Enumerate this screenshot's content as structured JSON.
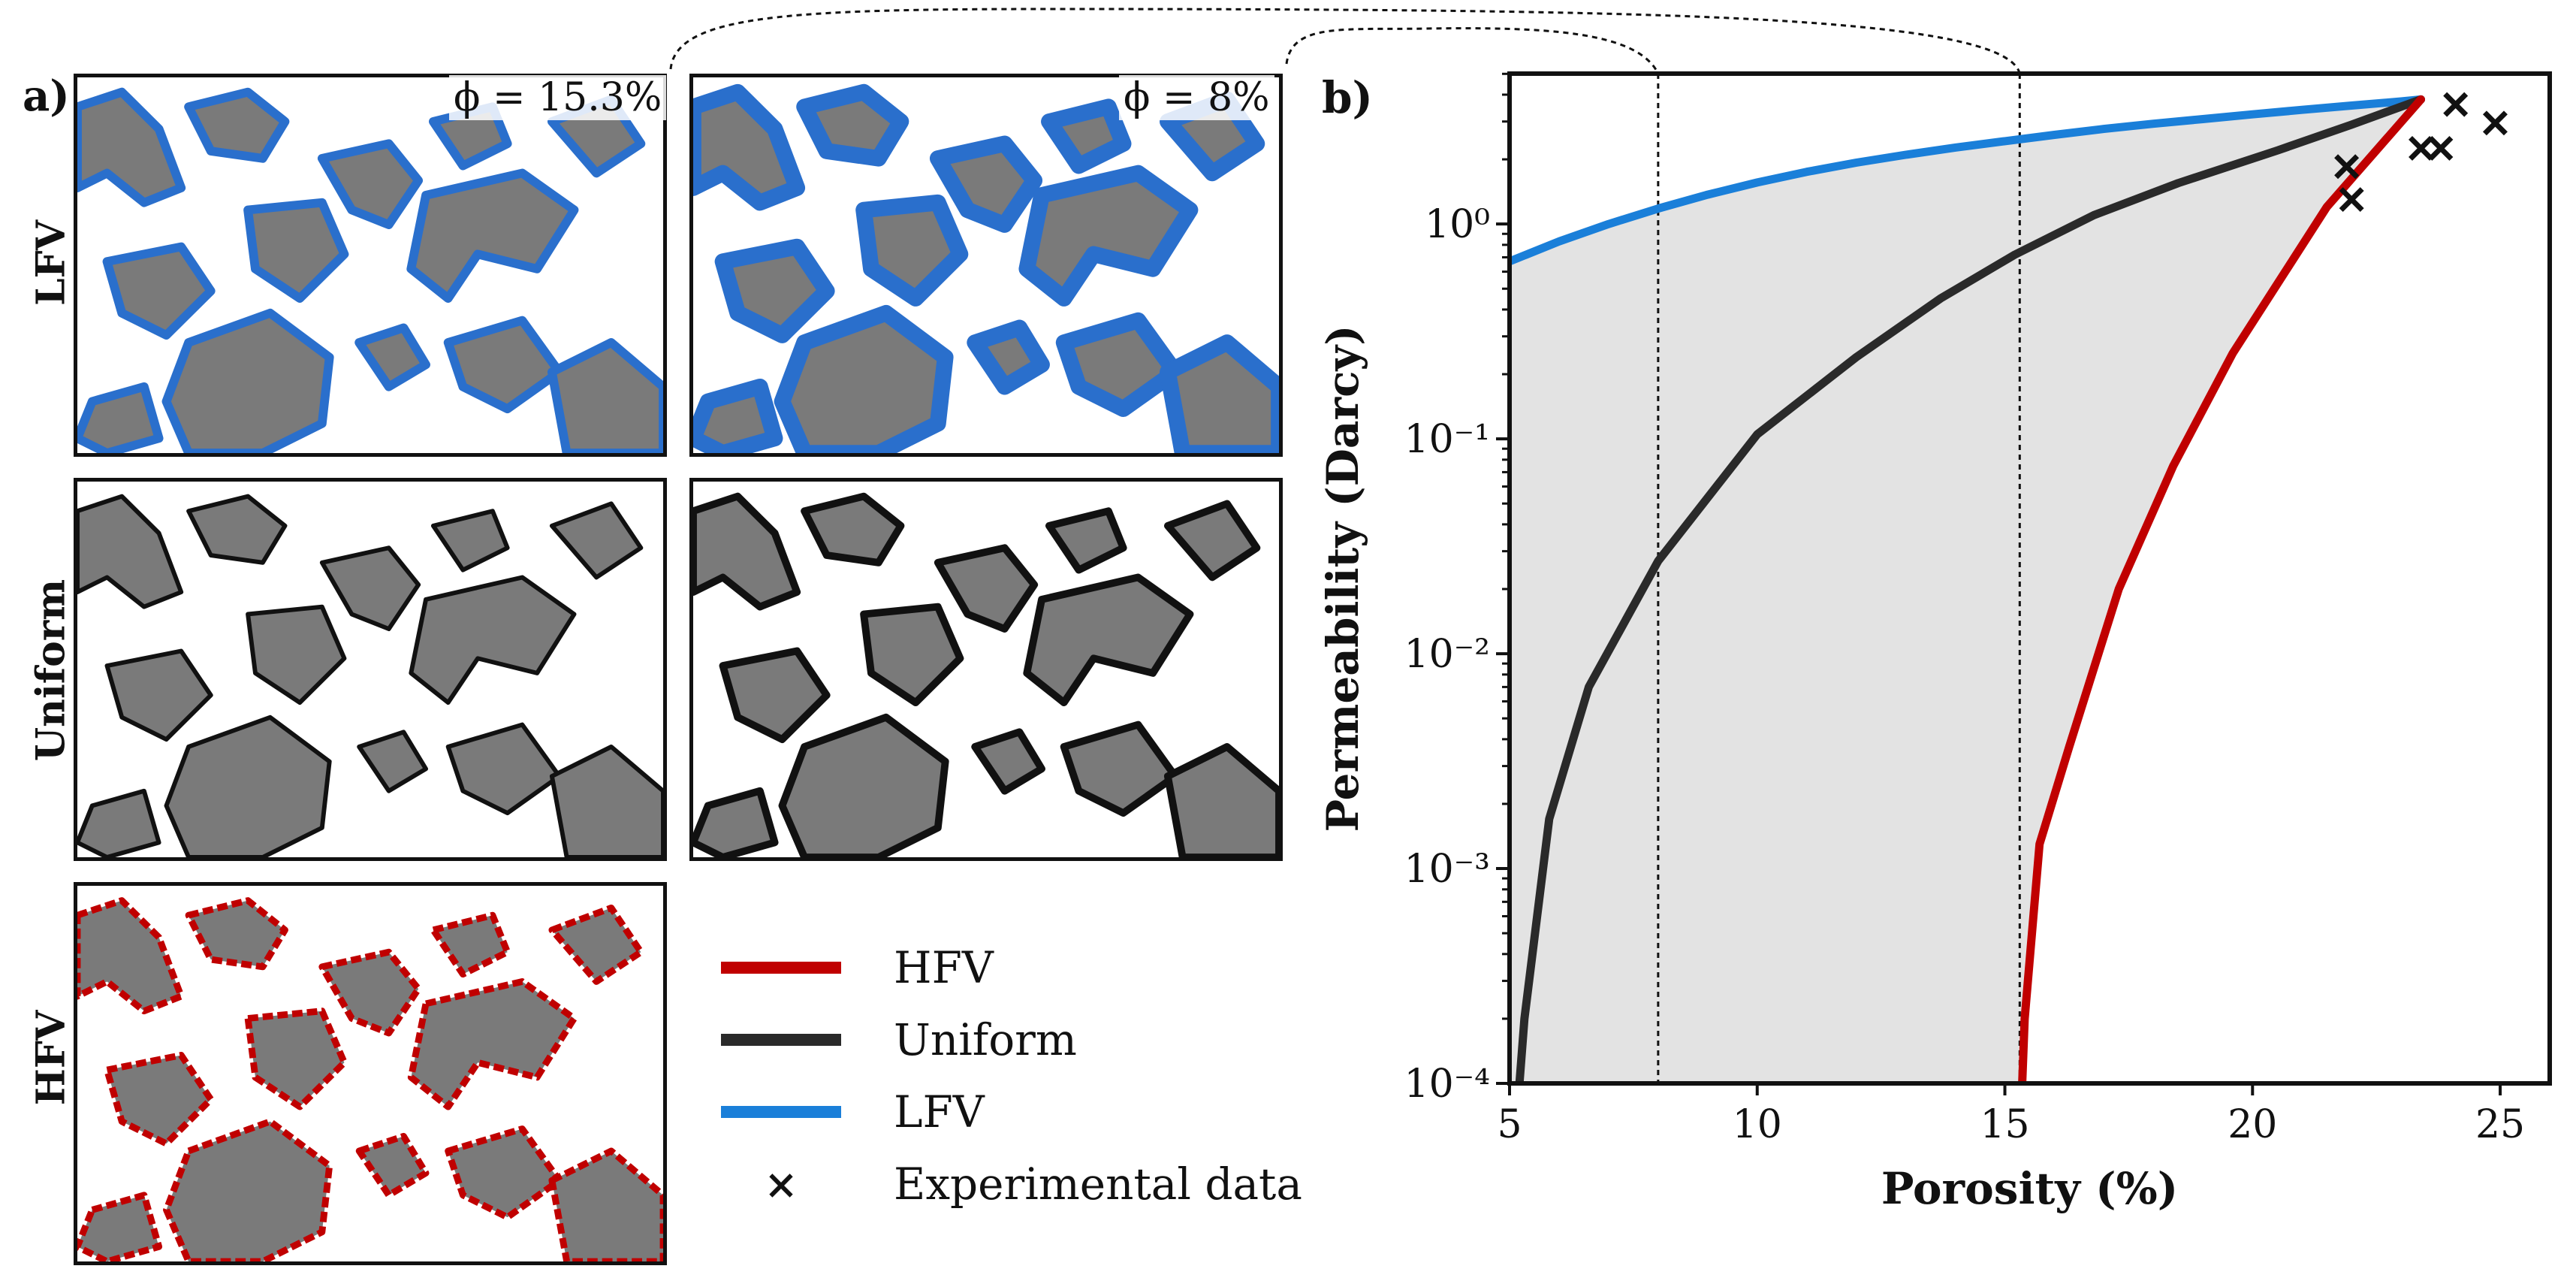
{
  "panel_a": {
    "letter": "a)",
    "rows": [
      {
        "label": "LFV",
        "phi_left": "ϕ = 15.3%",
        "phi_right": "ϕ = 8%"
      },
      {
        "label": "Uniform"
      },
      {
        "label": "HFV"
      }
    ]
  },
  "legend": {
    "items": [
      {
        "label": "HFV",
        "color": "#c00000",
        "kind": "line"
      },
      {
        "label": "Uniform",
        "color": "#2a2a2a",
        "kind": "line"
      },
      {
        "label": "LFV",
        "color": "#1a7fd9",
        "kind": "line"
      },
      {
        "label": "Experimental data",
        "color": "#111111",
        "kind": "marker",
        "symbol": "×"
      }
    ]
  },
  "colors": {
    "grain": "#7a7a7a",
    "lfv_coat": "#2a6fcc",
    "uniform_coat": "#111111",
    "hfv_coat": "#c00000",
    "shade": "#e3e3e3"
  },
  "chart_data": {
    "type": "line",
    "panel_letter": "b)",
    "xlabel": "Porosity (%)",
    "ylabel": "Permeability (Darcy)",
    "xlim": [
      5,
      26
    ],
    "ylim_log10": [
      -4,
      0.7
    ],
    "yscale": "log",
    "x_ticks": [
      5,
      10,
      15,
      20,
      25
    ],
    "y_ticks": [
      {
        "exp": -4,
        "label": "10⁻⁴"
      },
      {
        "exp": -3,
        "label": "10⁻³"
      },
      {
        "exp": -2,
        "label": "10⁻²"
      },
      {
        "exp": -1,
        "label": "10⁻¹"
      },
      {
        "exp": 0,
        "label": "10⁰"
      }
    ],
    "vlines": [
      8,
      15.3
    ],
    "series": [
      {
        "name": "LFV",
        "color": "#1a7fd9",
        "x": [
          5,
          6,
          7,
          8,
          9,
          10,
          11,
          12,
          13,
          14,
          15,
          16,
          17,
          18,
          19,
          20,
          21,
          22,
          23,
          23.4
        ],
        "y": [
          0.67,
          0.83,
          1.0,
          1.18,
          1.37,
          1.56,
          1.75,
          1.93,
          2.1,
          2.27,
          2.43,
          2.6,
          2.77,
          2.93,
          3.08,
          3.24,
          3.4,
          3.56,
          3.72,
          3.8
        ]
      },
      {
        "name": "Uniform",
        "color": "#2a2a2a",
        "x": [
          5.2,
          5.3,
          5.8,
          6.6,
          8.0,
          10.0,
          12.0,
          13.7,
          15.2,
          16.8,
          18.5,
          20.5,
          22.0,
          23.4
        ],
        "y": [
          0.0001,
          0.0002,
          0.0017,
          0.007,
          0.027,
          0.105,
          0.24,
          0.45,
          0.72,
          1.1,
          1.55,
          2.2,
          2.9,
          3.8
        ]
      },
      {
        "name": "HFV",
        "color": "#c00000",
        "x": [
          15.35,
          15.4,
          15.7,
          16.3,
          17.3,
          18.4,
          19.6,
          21.5,
          23.4
        ],
        "y": [
          0.0001,
          0.0002,
          0.0013,
          0.0037,
          0.02,
          0.075,
          0.25,
          1.2,
          3.8
        ]
      }
    ],
    "scatter": {
      "name": "Experimental data",
      "x": [
        21.9,
        22.0,
        23.4,
        23.8,
        24.1,
        24.9
      ],
      "y": [
        1.85,
        1.3,
        2.25,
        2.25,
        3.6,
        2.95
      ]
    }
  }
}
